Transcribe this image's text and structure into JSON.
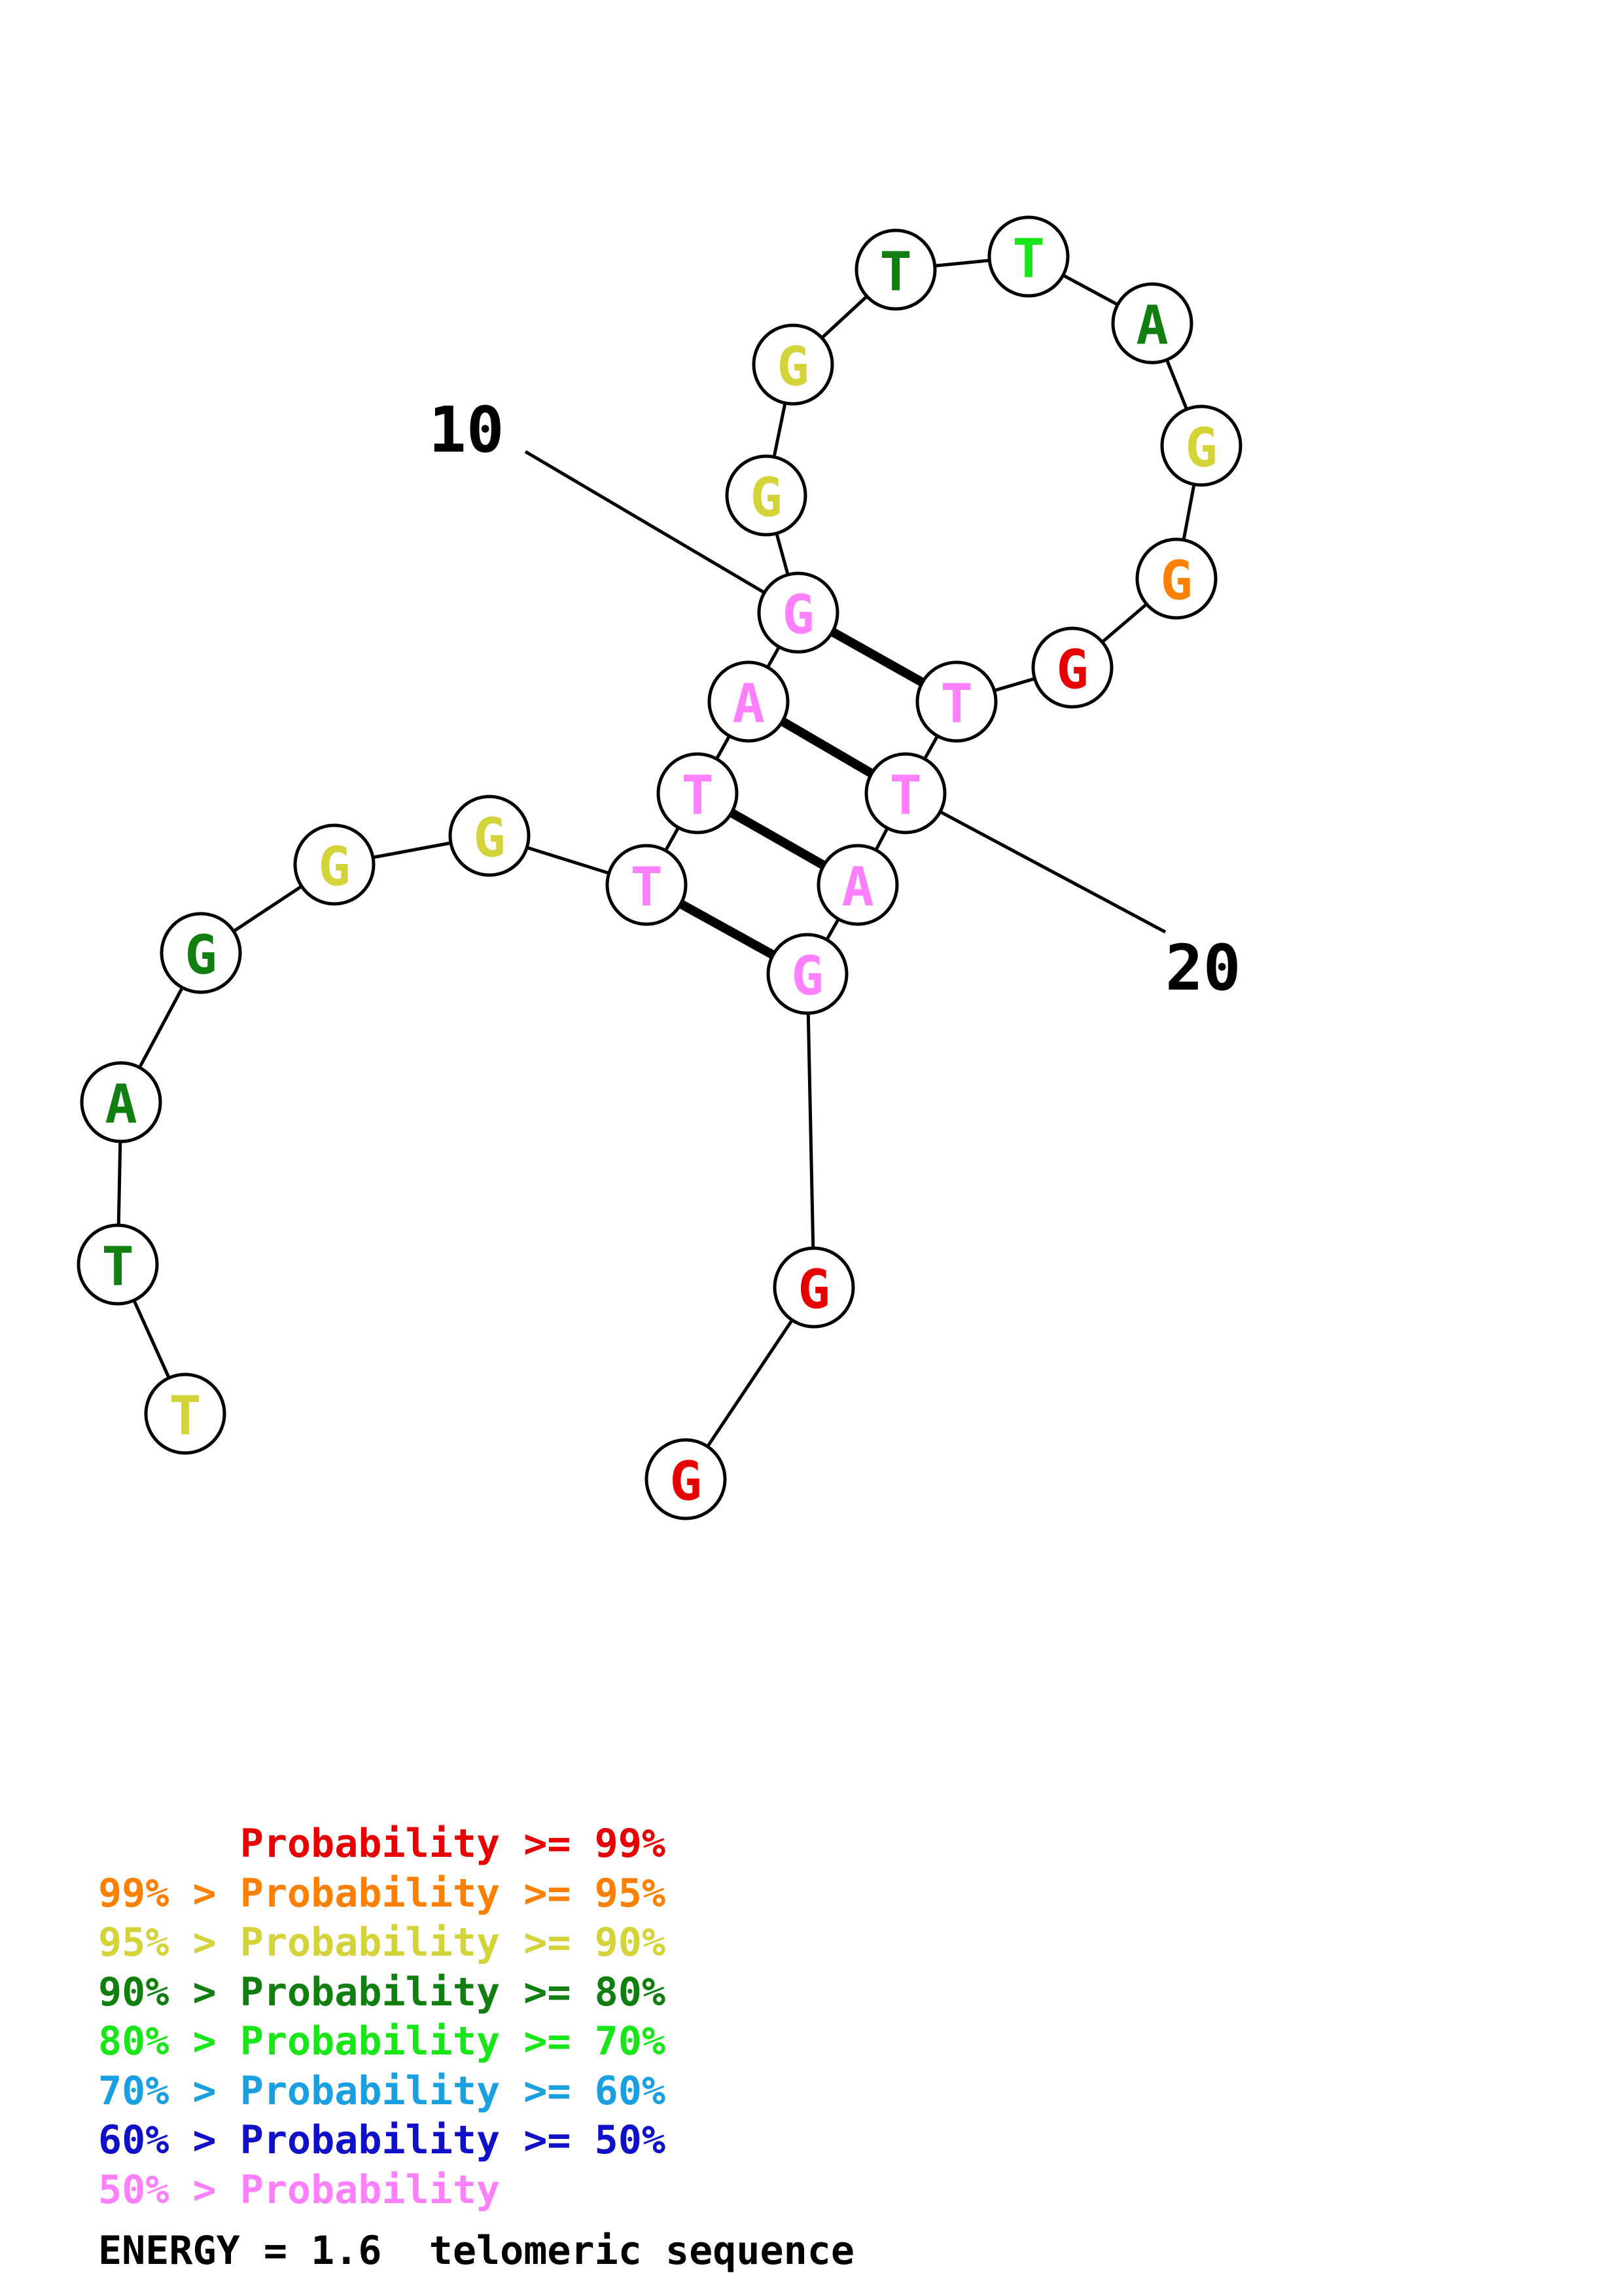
{
  "colors": {
    "p99": "#e60000",
    "p95": "#ff7f00",
    "p90": "#d4d43a",
    "p80": "#107f10",
    "p70": "#19e619",
    "p60": "#1aa0e0",
    "p50": "#1010c8",
    "low": "#ff80ff"
  },
  "sequence": [
    {
      "index": 1,
      "base": "T",
      "prob": "p90"
    },
    {
      "index": 2,
      "base": "T",
      "prob": "p80"
    },
    {
      "index": 3,
      "base": "A",
      "prob": "p80"
    },
    {
      "index": 4,
      "base": "G",
      "prob": "p80"
    },
    {
      "index": 5,
      "base": "G",
      "prob": "p90"
    },
    {
      "index": 6,
      "base": "G",
      "prob": "p90"
    },
    {
      "index": 7,
      "base": "T",
      "prob": "low"
    },
    {
      "index": 8,
      "base": "T",
      "prob": "low"
    },
    {
      "index": 9,
      "base": "A",
      "prob": "low"
    },
    {
      "index": 10,
      "base": "G",
      "prob": "low"
    },
    {
      "index": 11,
      "base": "G",
      "prob": "p90"
    },
    {
      "index": 12,
      "base": "G",
      "prob": "p90"
    },
    {
      "index": 13,
      "base": "T",
      "prob": "p80"
    },
    {
      "index": 14,
      "base": "T",
      "prob": "p70"
    },
    {
      "index": 15,
      "base": "A",
      "prob": "p80"
    },
    {
      "index": 16,
      "base": "G",
      "prob": "p90"
    },
    {
      "index": 17,
      "base": "G",
      "prob": "p95"
    },
    {
      "index": 18,
      "base": "G",
      "prob": "p99"
    },
    {
      "index": 19,
      "base": "T",
      "prob": "low"
    },
    {
      "index": 20,
      "base": "T",
      "prob": "low"
    },
    {
      "index": 21,
      "base": "A",
      "prob": "low"
    },
    {
      "index": 22,
      "base": "G",
      "prob": "low"
    },
    {
      "index": 23,
      "base": "G",
      "prob": "p99"
    },
    {
      "index": 24,
      "base": "G",
      "prob": "p99"
    }
  ],
  "pairs": [
    [
      7,
      22
    ],
    [
      8,
      21
    ],
    [
      9,
      20
    ],
    [
      10,
      19
    ]
  ],
  "index_labels": [
    {
      "index": 10,
      "text": "10"
    },
    {
      "index": 20,
      "text": "20"
    }
  ],
  "legend": [
    {
      "text": "      Probability >= 99%",
      "color": "p99"
    },
    {
      "text": "99% > Probability >= 95%",
      "color": "p95"
    },
    {
      "text": "95% > Probability >= 90%",
      "color": "p90"
    },
    {
      "text": "90% > Probability >= 80%",
      "color": "p80"
    },
    {
      "text": "80% > Probability >= 70%",
      "color": "p70"
    },
    {
      "text": "70% > Probability >= 60%",
      "color": "p60"
    },
    {
      "text": "60% > Probability >= 50%",
      "color": "p50"
    },
    {
      "text": "50% > Probability",
      "color": "low"
    }
  ],
  "footer": "ENERGY = 1.6  telomeric sequence"
}
